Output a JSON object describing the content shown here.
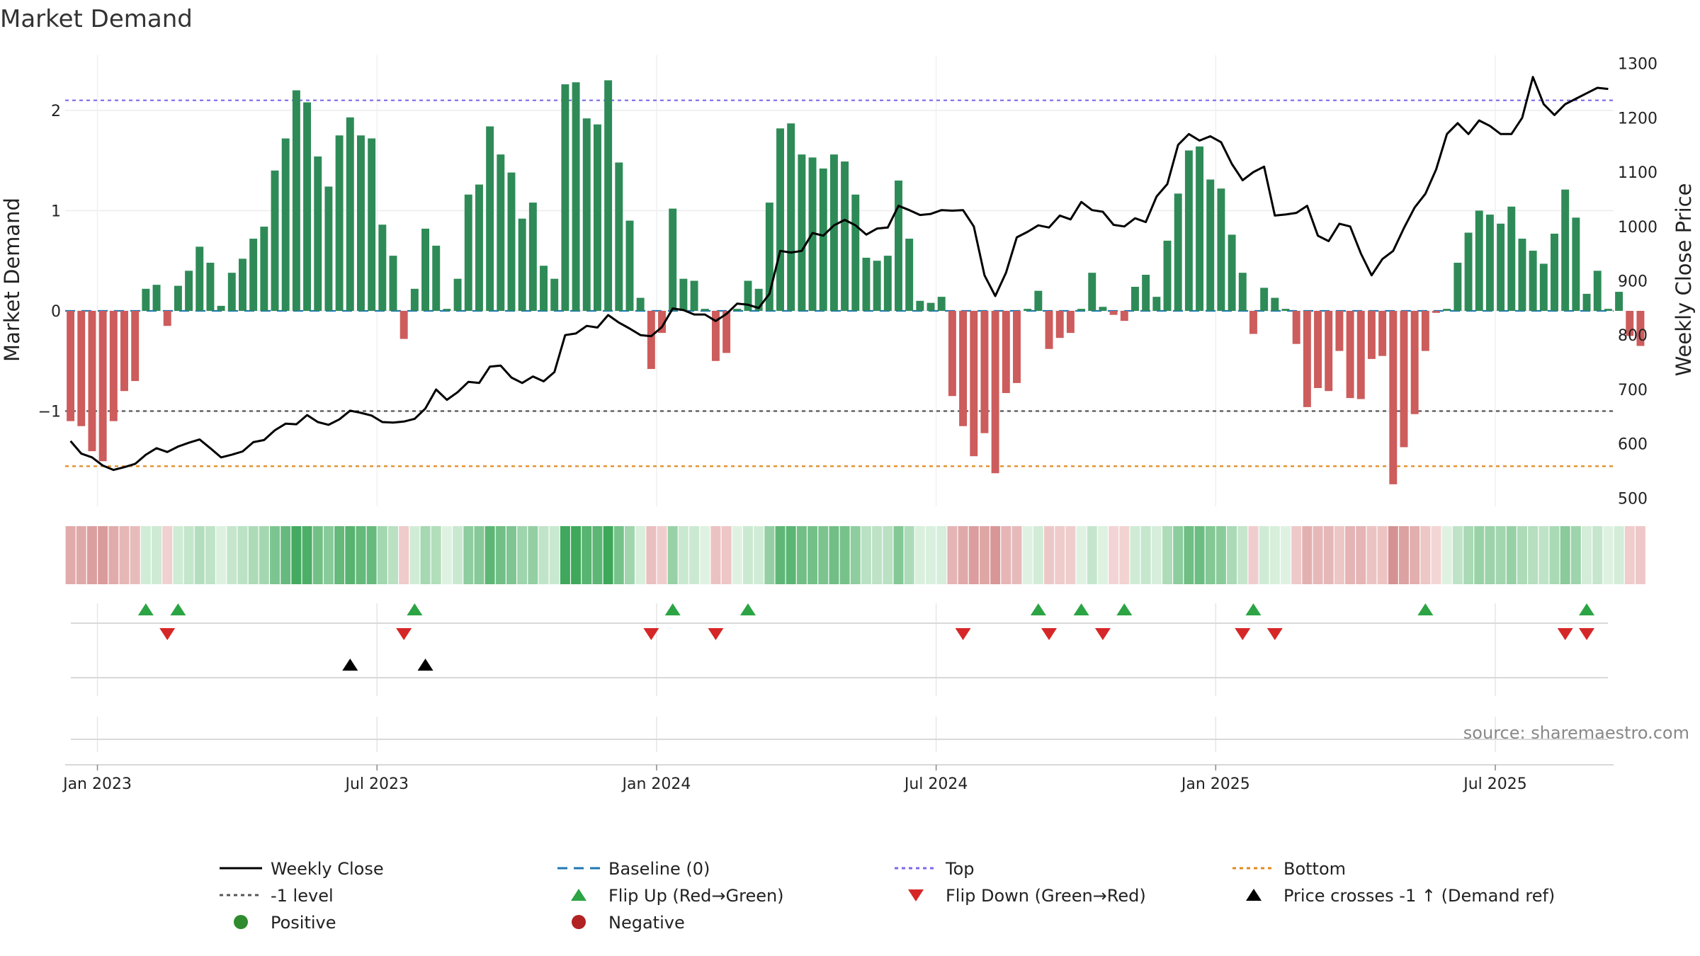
{
  "chart_data": {
    "type": "bar",
    "title": "Market Demand",
    "ylabel_left": "Market Demand",
    "ylabel_right": "Weekly Close Price",
    "left_ylim": [
      -1.95,
      2.55
    ],
    "left_yticks": [
      -1,
      0,
      1,
      2
    ],
    "left_ytick_labels": [
      "−1",
      "0",
      "1",
      "2"
    ],
    "right_ylim": [
      485,
      1315
    ],
    "right_yticks": [
      500,
      600,
      700,
      800,
      900,
      1000,
      1100,
      1200,
      1300
    ],
    "right_ytick_labels": [
      "500",
      "600",
      "700",
      "800",
      "900",
      "1000",
      "1100",
      "1200",
      "1300"
    ],
    "x_tick_labels": [
      "Jan 2023",
      "Jul 2023",
      "Jan 2024",
      "Jul 2024",
      "Jan 2025",
      "Jul 2025"
    ],
    "x_tick_weeks": [
      3,
      29,
      55,
      81,
      107,
      133
    ],
    "week_count": 144,
    "reference_lines": {
      "top": 2.1,
      "minus_one": -1,
      "bottom": -1.55,
      "baseline": 0
    },
    "market_demand": [
      -1.1,
      -1.15,
      -1.4,
      -1.5,
      -1.1,
      -0.8,
      -0.7,
      0.22,
      0.26,
      -0.15,
      0.25,
      0.4,
      0.64,
      0.48,
      0.05,
      0.38,
      0.52,
      0.72,
      0.84,
      1.4,
      1.72,
      2.2,
      2.08,
      1.54,
      1.24,
      1.75,
      1.93,
      1.75,
      1.72,
      0.86,
      0.55,
      -0.28,
      0.22,
      0.82,
      0.65,
      0.02,
      0.32,
      1.16,
      1.26,
      1.84,
      1.56,
      1.38,
      0.92,
      1.08,
      0.45,
      0.32,
      2.26,
      2.28,
      1.92,
      1.86,
      2.3,
      1.48,
      0.9,
      0.13,
      -0.58,
      -0.22,
      1.02,
      0.32,
      0.3,
      0.02,
      -0.5,
      -0.42,
      0.02,
      0.3,
      0.22,
      1.08,
      1.82,
      1.87,
      1.56,
      1.53,
      1.42,
      1.56,
      1.49,
      1.16,
      0.53,
      0.5,
      0.55,
      1.3,
      0.72,
      0.1,
      0.08,
      0.14,
      -0.85,
      -1.15,
      -1.45,
      -1.22,
      -1.62,
      -0.82,
      -0.72,
      0.02,
      0.2,
      -0.38,
      -0.27,
      -0.22,
      0.02,
      0.38,
      0.04,
      -0.04,
      -0.1,
      0.24,
      0.36,
      0.14,
      0.7,
      1.17,
      1.6,
      1.64,
      1.31,
      1.22,
      0.76,
      0.38,
      -0.23,
      0.23,
      0.13,
      0.02,
      -0.33,
      -0.96,
      -0.77,
      -0.8,
      -0.4,
      -0.87,
      -0.88,
      -0.48,
      -0.45,
      -1.73,
      -1.36,
      -1.03,
      -0.4,
      -0.02,
      0.02,
      0.48,
      0.78,
      1.0,
      0.96,
      0.87,
      1.04,
      0.72,
      0.6,
      0.47,
      0.77,
      1.21,
      0.93,
      0.17,
      0.4,
      0.02,
      0.19,
      -0.25,
      -0.35
    ],
    "weekly_close": [
      605,
      582,
      575,
      560,
      552,
      557,
      563,
      580,
      592,
      585,
      595,
      602,
      608,
      592,
      575,
      580,
      586,
      603,
      607,
      625,
      637,
      636,
      653,
      640,
      635,
      645,
      661,
      657,
      652,
      640,
      639,
      641,
      646,
      665,
      700,
      681,
      695,
      714,
      712,
      742,
      744,
      722,
      712,
      724,
      715,
      732,
      800,
      803,
      817,
      814,
      837,
      823,
      812,
      800,
      798,
      815,
      849,
      846,
      838,
      838,
      826,
      839,
      858,
      856,
      850,
      876,
      955,
      952,
      955,
      988,
      983,
      1002,
      1012,
      1002,
      985,
      996,
      998,
      1038,
      1030,
      1021,
      1023,
      1030,
      1029,
      1030,
      1000,
      910,
      872,
      915,
      980,
      990,
      1002,
      998,
      1020,
      1013,
      1045,
      1030,
      1027,
      1003,
      1000,
      1015,
      1008,
      1055,
      1078,
      1150,
      1170,
      1158,
      1166,
      1155,
      1115,
      1085,
      1100,
      1110,
      1020,
      1022,
      1025,
      1038,
      983,
      973,
      1005,
      1000,
      950,
      910,
      940,
      955,
      997,
      1035,
      1060,
      1105,
      1170,
      1190,
      1170,
      1195,
      1185,
      1170,
      1170,
      1200,
      1275,
      1225,
      1205,
      1225,
      1235,
      1245,
      1255,
      1253
    ],
    "flip_up_weeks": [
      7,
      10,
      32,
      56,
      63,
      90,
      94,
      98,
      110,
      126,
      141
    ],
    "flip_down_weeks": [
      9,
      31,
      54,
      60,
      83,
      91,
      96,
      109,
      112,
      139,
      141
    ],
    "price_cross_weeks": [
      26,
      33
    ],
    "colors": {
      "positive_bar": "#2E8B57",
      "negative_bar": "#CD5C5C",
      "price_line": "#000000",
      "top_line": "#7B68EE",
      "minus_one_line": "#555555",
      "bottom_line": "#E08A1E",
      "baseline": "#1F77B4",
      "flip_up": "#2CA444",
      "flip_down": "#D62728",
      "cross_marker": "#000000"
    },
    "legend": [
      {
        "label": "Weekly Close",
        "symbol": "line",
        "color": "#000000"
      },
      {
        "label": "Baseline (0)",
        "symbol": "dash",
        "color": "#1F77B4"
      },
      {
        "label": "Top",
        "symbol": "dot",
        "color": "#7B68EE"
      },
      {
        "label": "Bottom",
        "symbol": "dot",
        "color": "#E08A1E"
      },
      {
        "label": "-1 level",
        "symbol": "dot",
        "color": "#555555"
      },
      {
        "label": "Flip Up (Red→Green)",
        "symbol": "tri-up",
        "color": "#2CA444"
      },
      {
        "label": "Flip Down (Green→Red)",
        "symbol": "tri-down",
        "color": "#D62728"
      },
      {
        "label": "Price crosses -1 ↑ (Demand ref)",
        "symbol": "tri-up",
        "color": "#000000"
      },
      {
        "label": "Positive",
        "symbol": "circle",
        "color": "#2E8B2E"
      },
      {
        "label": "Negative",
        "symbol": "circle",
        "color": "#B22222"
      }
    ],
    "source": "source: sharemaestro.com"
  }
}
